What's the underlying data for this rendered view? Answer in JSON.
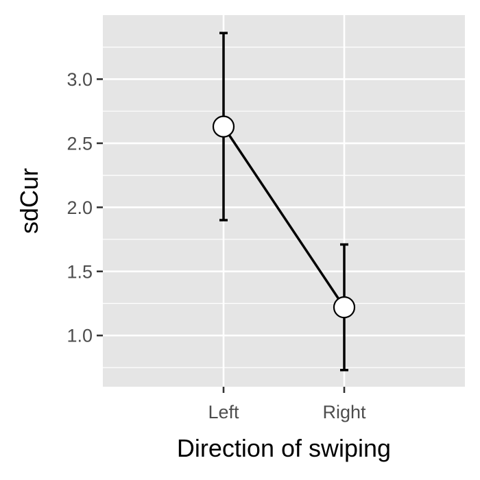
{
  "chart_data": {
    "type": "line",
    "title": "",
    "xlabel": "Direction of swiping",
    "ylabel": "sdCur",
    "categories": [
      "Left",
      "Right"
    ],
    "series": [
      {
        "values": [
          2.63,
          1.22
        ],
        "error_low": [
          1.9,
          0.73
        ],
        "error_high": [
          3.36,
          1.71
        ]
      }
    ],
    "ylim": [
      0.6,
      3.5
    ],
    "yticks": [
      1.0,
      1.5,
      2.0,
      2.5,
      3.0
    ],
    "ytick_labels": [
      "1.0",
      "1.5",
      "2.0",
      "2.5",
      "3.0"
    ],
    "grid": true,
    "legend": "none",
    "colors": {
      "panel": "#e5e5e5",
      "grid": "#ffffff",
      "line": "#000000",
      "point_fill": "#ffffff"
    }
  }
}
